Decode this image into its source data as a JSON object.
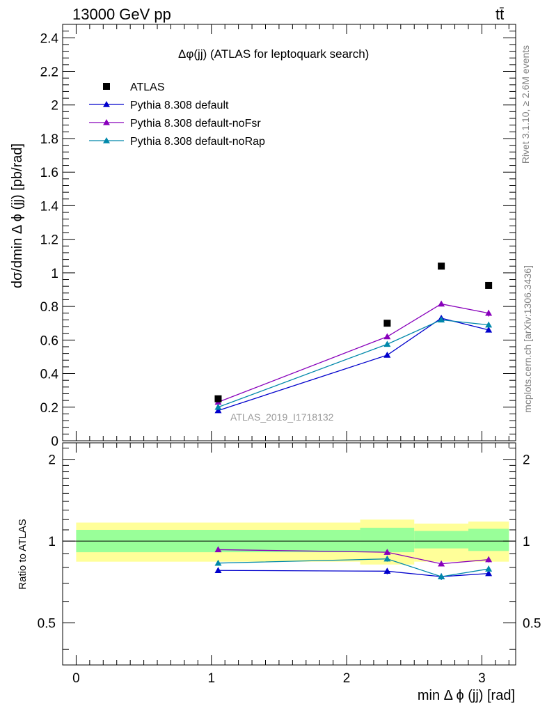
{
  "header": {
    "energy_label": "13000 GeV pp",
    "process_label": "tt̄"
  },
  "side_labels": {
    "rivet": "Rivet 3.1.10, ≥ 2.6M events",
    "source": "mcplots.cern.ch [arXiv:1306.3436]"
  },
  "watermark": "ATLAS_2019_I1718132",
  "chart_data": {
    "type": "line",
    "title": "Δφ(jj) (ATLAS for leptoquark search)",
    "xlabel": "min Δ ϕ (jj) [rad]",
    "ylabel": "dσ/dmin Δ ϕ (jj) [pb/rad]",
    "ratio_ylabel": "Ratio to ATLAS",
    "xlim": [
      -0.1,
      3.25
    ],
    "ylim": [
      0,
      2.48
    ],
    "ratio_ylim": [
      0.35,
      2.3
    ],
    "ratio_scale": "log",
    "xticks": [
      0,
      1,
      2,
      3
    ],
    "xtick_labels": [
      "0",
      "1",
      "2",
      "3"
    ],
    "yticks": [
      0,
      0.2,
      0.4,
      0.6,
      0.8,
      1,
      1.2,
      1.4,
      1.6,
      1.8,
      2,
      2.2,
      2.4
    ],
    "ytick_labels": [
      "0",
      "0.2",
      "0.4",
      "0.6",
      "0.8",
      "1",
      "1.2",
      "1.4",
      "1.6",
      "1.8",
      "2",
      "2.2",
      "2.4"
    ],
    "ratio_yticks": [
      0.5,
      1,
      2
    ],
    "ratio_ytick_labels": [
      "0.5",
      "1",
      "2"
    ],
    "legend_position": "top-left",
    "data": {
      "name": "ATLAS",
      "color": "#000000",
      "x": [
        1.05,
        2.3,
        2.7,
        3.05
      ],
      "y": [
        0.25,
        0.7,
        1.04,
        0.925
      ],
      "bins": [
        [
          0,
          2.1
        ],
        [
          2.1,
          2.5
        ],
        [
          2.5,
          2.9
        ],
        [
          2.9,
          3.2
        ]
      ],
      "band_inner": [
        [
          0.91,
          1.1
        ],
        [
          0.91,
          1.12
        ],
        [
          0.94,
          1.09
        ],
        [
          0.92,
          1.11
        ]
      ],
      "band_outer": [
        [
          0.84,
          1.17
        ],
        [
          0.82,
          1.2
        ],
        [
          0.84,
          1.16
        ],
        [
          0.84,
          1.18
        ]
      ]
    },
    "series": [
      {
        "name": "Pythia 8.308 default",
        "color": "#0000cc",
        "x": [
          1.05,
          2.3,
          2.7,
          3.05
        ],
        "y": [
          0.18,
          0.51,
          0.73,
          0.66
        ],
        "yerr": [
          0.005,
          0.01,
          0.015,
          0.012
        ],
        "ratio": [
          0.78,
          0.775,
          0.74,
          0.76
        ],
        "ratio_err": [
          0.01,
          0.02,
          0.02,
          0.012
        ]
      },
      {
        "name": "Pythia 8.308 default-noFsr",
        "color": "#8800bb",
        "x": [
          1.05,
          2.3,
          2.7,
          3.05
        ],
        "y": [
          0.23,
          0.62,
          0.815,
          0.76
        ],
        "yerr": [
          0.005,
          0.01,
          0.015,
          0.02
        ],
        "ratio": [
          0.93,
          0.91,
          0.825,
          0.855
        ],
        "ratio_err": [
          0.01,
          0.02,
          0.012,
          0.02
        ]
      },
      {
        "name": "Pythia 8.308 default-noRap",
        "color": "#0088aa",
        "x": [
          1.05,
          2.3,
          2.7,
          3.05
        ],
        "y": [
          0.2,
          0.575,
          0.72,
          0.69
        ],
        "yerr": [
          0.005,
          0.01,
          0.015,
          0.015
        ],
        "ratio": [
          0.83,
          0.86,
          0.74,
          0.79
        ],
        "ratio_err": [
          0.01,
          0.02,
          0.02,
          0.02
        ]
      }
    ],
    "colors": {
      "band_inner": "#99ff99",
      "band_outer": "#ffff99"
    }
  }
}
